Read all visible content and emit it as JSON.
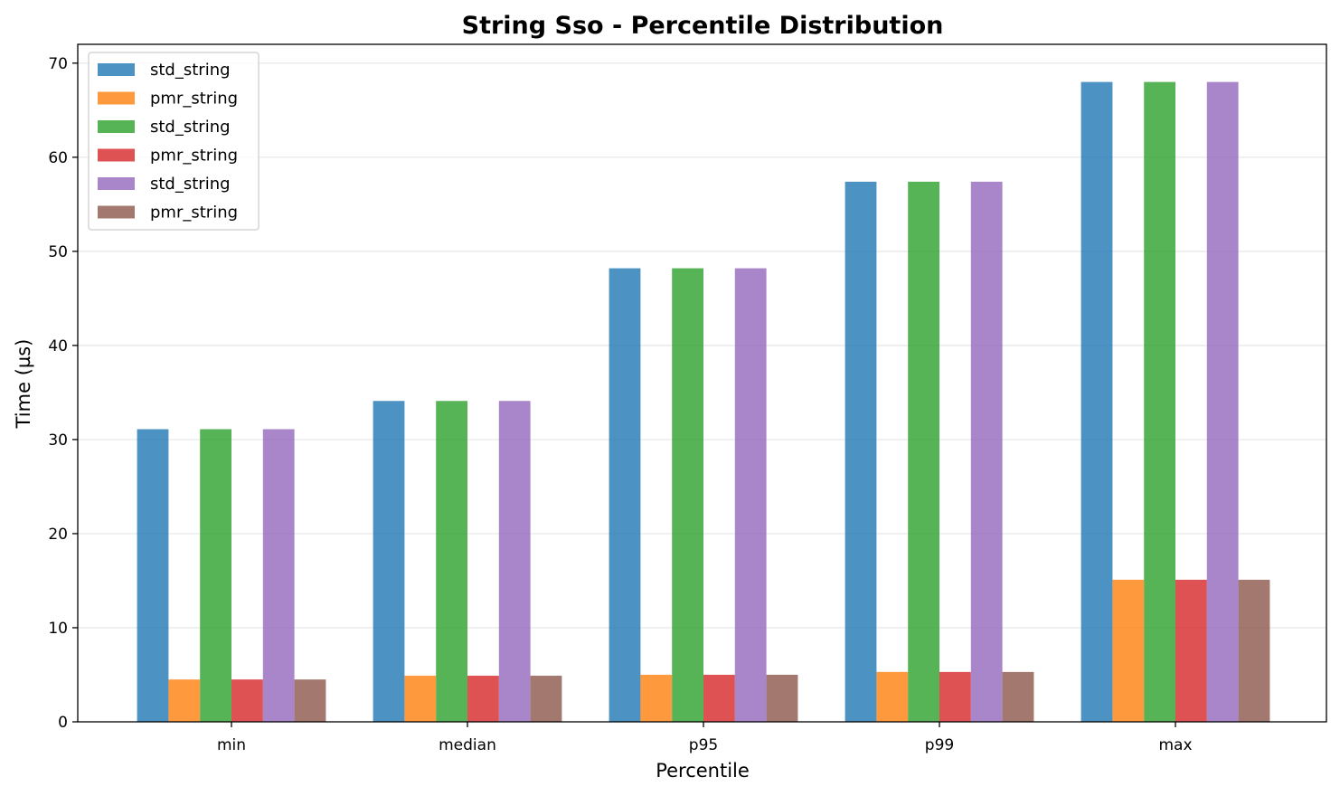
{
  "chart_data": {
    "type": "bar",
    "title": "String Sso - Percentile Distribution",
    "xlabel": "Percentile",
    "ylabel": "Time (µs)",
    "categories": [
      "min",
      "median",
      "p95",
      "p99",
      "max"
    ],
    "ylim": [
      0,
      72
    ],
    "yticks": [
      0,
      10,
      20,
      30,
      40,
      50,
      60,
      70
    ],
    "grid": "y",
    "legend_position": "top-left",
    "series": [
      {
        "name": "std_string",
        "color": "#1f77b4",
        "values": [
          31.1,
          34.1,
          48.2,
          57.4,
          68.0
        ]
      },
      {
        "name": "pmr_string",
        "color": "#ff7f0e",
        "values": [
          4.5,
          4.9,
          5.0,
          5.3,
          15.1
        ]
      },
      {
        "name": "std_string",
        "color": "#2ca02c",
        "values": [
          31.1,
          34.1,
          48.2,
          57.4,
          68.0
        ]
      },
      {
        "name": "pmr_string",
        "color": "#d62728",
        "values": [
          4.5,
          4.9,
          5.0,
          5.3,
          15.1
        ]
      },
      {
        "name": "std_string",
        "color": "#9467bd",
        "values": [
          31.1,
          34.1,
          48.2,
          57.4,
          68.0
        ]
      },
      {
        "name": "pmr_string",
        "color": "#8c564b",
        "values": [
          4.5,
          4.9,
          5.0,
          5.3,
          15.1
        ]
      }
    ]
  }
}
